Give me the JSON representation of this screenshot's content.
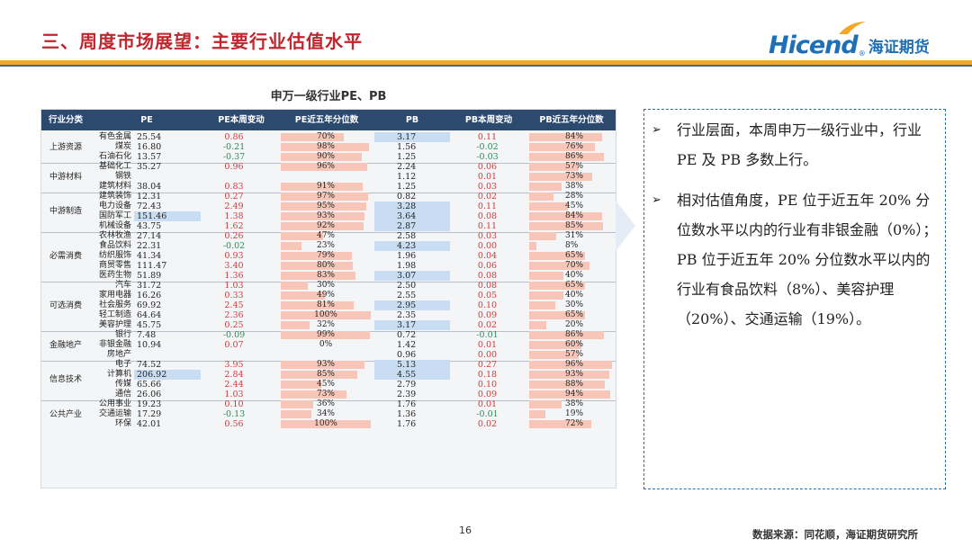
{
  "header": {
    "title": "三、周度市场展望：主要行业估值水平",
    "logo_en": "Hicend",
    "logo_reg": "®",
    "logo_cn": "海证期货"
  },
  "table": {
    "title": "申万一级行业PE、PB",
    "headers": [
      "行业分类",
      "PE",
      "PE本周变动",
      "PE近五年分位数",
      "PB",
      "PB本周变动",
      "PB近五年分位数"
    ],
    "groups": [
      {
        "label": "上游资源",
        "rows": [
          {
            "name": "有色金属",
            "pe": "25.54",
            "pe_chg": "0.86",
            "pe_pct": "70%",
            "pb": "3.17",
            "pb_chg": "0.11",
            "pb_pct": "84%"
          },
          {
            "name": "煤炭",
            "pe": "16.80",
            "pe_chg": "-0.21",
            "pe_pct": "98%",
            "pb": "1.56",
            "pb_chg": "-0.02",
            "pb_pct": "76%"
          },
          {
            "name": "石油石化",
            "pe": "13.57",
            "pe_chg": "-0.37",
            "pe_pct": "90%",
            "pb": "1.25",
            "pb_chg": "-0.03",
            "pb_pct": "86%"
          }
        ]
      },
      {
        "label": "中游材料",
        "rows": [
          {
            "name": "基础化工",
            "pe": "35.27",
            "pe_chg": "0.96",
            "pe_pct": "96%",
            "pb": "2.24",
            "pb_chg": "0.06",
            "pb_pct": "57%"
          },
          {
            "name": "钢铁",
            "pe": "",
            "pe_chg": "",
            "pe_pct": "",
            "pb": "1.12",
            "pb_chg": "0.01",
            "pb_pct": "73%"
          },
          {
            "name": "建筑材料",
            "pe": "38.04",
            "pe_chg": "0.83",
            "pe_pct": "91%",
            "pb": "1.25",
            "pb_chg": "0.03",
            "pb_pct": "38%"
          }
        ]
      },
      {
        "label": "中游制造",
        "rows": [
          {
            "name": "建筑装饰",
            "pe": "12.31",
            "pe_chg": "0.27",
            "pe_pct": "97%",
            "pb": "0.82",
            "pb_chg": "0.02",
            "pb_pct": "28%"
          },
          {
            "name": "电力设备",
            "pe": "72.43",
            "pe_chg": "2.49",
            "pe_pct": "95%",
            "pb": "3.28",
            "pb_chg": "0.11",
            "pb_pct": "45%"
          },
          {
            "name": "国防军工",
            "pe": "151.46",
            "pe_chg": "1.38",
            "pe_pct": "93%",
            "pb": "3.64",
            "pb_chg": "0.08",
            "pb_pct": "84%"
          },
          {
            "name": "机械设备",
            "pe": "43.75",
            "pe_chg": "1.62",
            "pe_pct": "92%",
            "pb": "2.87",
            "pb_chg": "0.11",
            "pb_pct": "85%"
          }
        ]
      },
      {
        "label": "必需消费",
        "rows": [
          {
            "name": "农林牧渔",
            "pe": "27.14",
            "pe_chg": "0.26",
            "pe_pct": "47%",
            "pb": "2.58",
            "pb_chg": "0.03",
            "pb_pct": "31%"
          },
          {
            "name": "食品饮料",
            "pe": "22.31",
            "pe_chg": "-0.02",
            "pe_pct": "23%",
            "pb": "4.23",
            "pb_chg": "0.00",
            "pb_pct": "8%"
          },
          {
            "name": "纺织服饰",
            "pe": "41.34",
            "pe_chg": "0.93",
            "pe_pct": "79%",
            "pb": "1.96",
            "pb_chg": "0.04",
            "pb_pct": "65%"
          },
          {
            "name": "商贸零售",
            "pe": "111.47",
            "pe_chg": "3.40",
            "pe_pct": "80%",
            "pb": "1.98",
            "pb_chg": "0.06",
            "pb_pct": "70%"
          },
          {
            "name": "医药生物",
            "pe": "51.89",
            "pe_chg": "1.36",
            "pe_pct": "83%",
            "pb": "3.07",
            "pb_chg": "0.08",
            "pb_pct": "40%"
          }
        ]
      },
      {
        "label": "可选消费",
        "rows": [
          {
            "name": "汽车",
            "pe": "31.72",
            "pe_chg": "1.03",
            "pe_pct": "30%",
            "pb": "2.50",
            "pb_chg": "0.08",
            "pb_pct": "65%"
          },
          {
            "name": "家用电器",
            "pe": "16.26",
            "pe_chg": "0.33",
            "pe_pct": "49%",
            "pb": "2.55",
            "pb_chg": "0.05",
            "pb_pct": "40%"
          },
          {
            "name": "社会服务",
            "pe": "69.92",
            "pe_chg": "2.45",
            "pe_pct": "81%",
            "pb": "2.95",
            "pb_chg": "0.10",
            "pb_pct": "30%"
          },
          {
            "name": "轻工制造",
            "pe": "64.64",
            "pe_chg": "2.36",
            "pe_pct": "100%",
            "pb": "2.35",
            "pb_chg": "0.09",
            "pb_pct": "65%"
          },
          {
            "name": "美容护理",
            "pe": "45.75",
            "pe_chg": "0.25",
            "pe_pct": "32%",
            "pb": "3.17",
            "pb_chg": "0.02",
            "pb_pct": "20%"
          }
        ]
      },
      {
        "label": "金融地产",
        "rows": [
          {
            "name": "银行",
            "pe": "7.48",
            "pe_chg": "-0.09",
            "pe_pct": "99%",
            "pb": "0.72",
            "pb_chg": "-0.01",
            "pb_pct": "86%"
          },
          {
            "name": "非银金融",
            "pe": "10.94",
            "pe_chg": "0.07",
            "pe_pct": "0%",
            "pb": "1.42",
            "pb_chg": "0.01",
            "pb_pct": "60%"
          },
          {
            "name": "房地产",
            "pe": "",
            "pe_chg": "",
            "pe_pct": "",
            "pb": "0.96",
            "pb_chg": "0.00",
            "pb_pct": "57%"
          }
        ]
      },
      {
        "label": "信息技术",
        "rows": [
          {
            "name": "电子",
            "pe": "74.52",
            "pe_chg": "3.95",
            "pe_pct": "93%",
            "pb": "5.13",
            "pb_chg": "0.27",
            "pb_pct": "96%"
          },
          {
            "name": "计算机",
            "pe": "206.92",
            "pe_chg": "2.84",
            "pe_pct": "85%",
            "pb": "4.55",
            "pb_chg": "0.18",
            "pb_pct": "93%"
          },
          {
            "name": "传媒",
            "pe": "65.66",
            "pe_chg": "2.44",
            "pe_pct": "45%",
            "pb": "2.79",
            "pb_chg": "0.10",
            "pb_pct": "88%"
          },
          {
            "name": "通信",
            "pe": "26.06",
            "pe_chg": "1.03",
            "pe_pct": "73%",
            "pb": "2.39",
            "pb_chg": "0.09",
            "pb_pct": "94%"
          }
        ]
      },
      {
        "label": "公共产业",
        "rows": [
          {
            "name": "公用事业",
            "pe": "19.23",
            "pe_chg": "0.10",
            "pe_pct": "36%",
            "pb": "1.76",
            "pb_chg": "0.01",
            "pb_pct": "38%"
          },
          {
            "name": "交通运输",
            "pe": "17.29",
            "pe_chg": "-0.13",
            "pe_pct": "34%",
            "pb": "1.36",
            "pb_chg": "-0.01",
            "pb_pct": "19%"
          },
          {
            "name": "环保",
            "pe": "42.01",
            "pe_chg": "0.56",
            "pe_pct": "100%",
            "pb": "1.76",
            "pb_chg": "0.02",
            "pb_pct": "72%"
          }
        ]
      }
    ]
  },
  "commentary": {
    "bullet": "➢",
    "paragraphs": [
      "行业层面，本周申万一级行业中，行业 PE 及 PB 多数上行。",
      "相对估值角度，PE 位于近五年 20% 分位数水平以内的行业有非银金融（0%）；PB 位于近五年 20% 分位数水平以内的行业有食品饮料（8%）、美容护理（20%）、交通运输（19%）。"
    ]
  },
  "footer": {
    "page_number": "16",
    "source": "数据来源：同花顺，海证期货研究所"
  },
  "colors": {
    "title_red": "#c0262d",
    "brand_blue": "#1e6fb8",
    "header_navy": "#2c4a6e",
    "bar_pink": "#f7c6b8",
    "highlight_blue": "#c9ddf2",
    "rule_orange": "#f5a623"
  }
}
